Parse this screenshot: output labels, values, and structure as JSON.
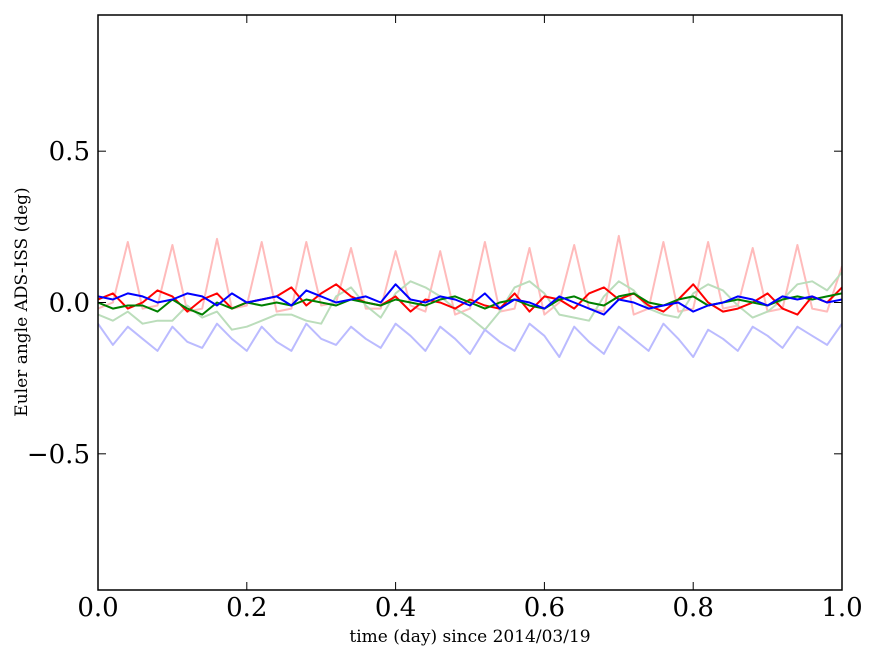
{
  "chart_data": {
    "type": "line",
    "title": "",
    "xlabel": "time (day) since 2014/03/19",
    "ylabel": "Euler angle ADS-ISS (deg)",
    "xlim": [
      0.0,
      1.0
    ],
    "ylim": [
      -0.95,
      0.95
    ],
    "xticks": [
      0.0,
      0.2,
      0.4,
      0.6,
      0.8,
      1.0
    ],
    "xtick_labels": [
      "0.0",
      "0.2",
      "0.4",
      "0.6",
      "0.8",
      "1.0"
    ],
    "yticks": [
      0.5,
      0.0,
      -0.5
    ],
    "ytick_labels": [
      "0.5",
      "0.0",
      "−0.5"
    ],
    "grid": false,
    "legend": "none",
    "x": [
      0.0,
      0.02,
      0.04,
      0.06,
      0.08,
      0.1,
      0.12,
      0.14,
      0.16,
      0.18,
      0.2,
      0.22,
      0.24,
      0.26,
      0.28,
      0.3,
      0.32,
      0.34,
      0.36,
      0.38,
      0.4,
      0.42,
      0.44,
      0.46,
      0.48,
      0.5,
      0.52,
      0.54,
      0.56,
      0.58,
      0.6,
      0.62,
      0.64,
      0.66,
      0.68,
      0.7,
      0.72,
      0.74,
      0.76,
      0.78,
      0.8,
      0.82,
      0.84,
      0.86,
      0.88,
      0.9,
      0.92,
      0.94,
      0.96,
      0.98,
      1.0
    ],
    "series": [
      {
        "color": "#ffbbbb",
        "values": [
          -0.02,
          0.0,
          0.2,
          -0.02,
          -0.01,
          0.19,
          -0.03,
          -0.02,
          0.21,
          -0.02,
          -0.01,
          0.2,
          -0.03,
          -0.02,
          0.2,
          -0.01,
          0.0,
          0.18,
          -0.02,
          -0.02,
          0.17,
          -0.01,
          -0.03,
          0.17,
          -0.04,
          -0.02,
          0.2,
          -0.03,
          -0.02,
          0.18,
          -0.04,
          0.0,
          0.19,
          -0.02,
          -0.03,
          0.22,
          -0.04,
          -0.02,
          0.2,
          -0.03,
          -0.02,
          0.2,
          -0.02,
          -0.01,
          0.18,
          -0.03,
          -0.02,
          0.19,
          -0.02,
          -0.03,
          0.12
        ]
      },
      {
        "color": "#bbddbb",
        "values": [
          -0.04,
          -0.06,
          -0.03,
          -0.07,
          -0.06,
          -0.06,
          -0.01,
          -0.05,
          -0.03,
          -0.09,
          -0.08,
          -0.06,
          -0.04,
          -0.04,
          -0.06,
          -0.07,
          0.02,
          0.05,
          -0.01,
          -0.05,
          0.03,
          0.07,
          0.05,
          0.02,
          -0.02,
          -0.05,
          -0.09,
          -0.03,
          0.05,
          0.07,
          0.03,
          -0.04,
          -0.05,
          -0.06,
          0.02,
          0.07,
          0.04,
          -0.02,
          -0.04,
          -0.05,
          0.03,
          0.06,
          0.04,
          -0.01,
          -0.05,
          -0.03,
          0.01,
          0.06,
          0.07,
          0.04,
          0.1
        ]
      },
      {
        "color": "#bbbbff",
        "values": [
          -0.07,
          -0.14,
          -0.08,
          -0.12,
          -0.16,
          -0.08,
          -0.13,
          -0.15,
          -0.07,
          -0.12,
          -0.16,
          -0.08,
          -0.13,
          -0.16,
          -0.07,
          -0.12,
          -0.14,
          -0.08,
          -0.12,
          -0.15,
          -0.07,
          -0.11,
          -0.16,
          -0.08,
          -0.12,
          -0.17,
          -0.09,
          -0.13,
          -0.16,
          -0.07,
          -0.11,
          -0.18,
          -0.08,
          -0.13,
          -0.17,
          -0.08,
          -0.12,
          -0.16,
          -0.07,
          -0.12,
          -0.18,
          -0.09,
          -0.12,
          -0.16,
          -0.08,
          -0.11,
          -0.15,
          -0.08,
          -0.11,
          -0.14,
          -0.07
        ]
      },
      {
        "color": "#ff0000",
        "values": [
          0.01,
          0.03,
          -0.02,
          0.0,
          0.04,
          0.02,
          -0.03,
          0.01,
          0.03,
          -0.02,
          0.0,
          0.01,
          0.02,
          0.05,
          -0.01,
          0.03,
          0.06,
          0.02,
          0.0,
          -0.01,
          0.02,
          -0.03,
          0.01,
          0.0,
          -0.02,
          0.01,
          -0.01,
          -0.02,
          0.03,
          -0.03,
          0.02,
          0.01,
          -0.02,
          0.03,
          0.05,
          0.01,
          0.03,
          -0.01,
          -0.03,
          0.01,
          0.06,
          0.0,
          -0.03,
          -0.02,
          0.0,
          0.03,
          -0.02,
          -0.04,
          0.02,
          0.0,
          0.05
        ]
      },
      {
        "color": "#008000",
        "values": [
          0.0,
          -0.02,
          -0.01,
          -0.01,
          -0.03,
          0.01,
          -0.02,
          -0.04,
          0.0,
          -0.02,
          0.0,
          -0.01,
          0.0,
          -0.01,
          0.01,
          0.0,
          -0.01,
          0.01,
          0.0,
          -0.01,
          0.01,
          0.0,
          -0.01,
          0.01,
          0.02,
          0.0,
          -0.02,
          0.0,
          0.01,
          -0.01,
          -0.02,
          0.01,
          0.02,
          0.0,
          -0.01,
          0.02,
          0.03,
          0.0,
          -0.01,
          0.01,
          0.02,
          -0.01,
          0.0,
          0.01,
          0.0,
          -0.01,
          0.01,
          0.02,
          0.01,
          0.02,
          0.03
        ]
      },
      {
        "color": "#0000ff",
        "values": [
          0.02,
          0.01,
          0.03,
          0.02,
          0.0,
          0.01,
          0.03,
          0.02,
          -0.01,
          0.03,
          0.0,
          0.01,
          0.02,
          -0.01,
          0.04,
          0.02,
          0.0,
          0.01,
          0.02,
          0.0,
          0.06,
          0.01,
          0.0,
          0.02,
          0.01,
          -0.01,
          0.03,
          -0.02,
          0.01,
          0.0,
          -0.02,
          0.02,
          0.0,
          -0.02,
          -0.04,
          0.01,
          0.0,
          -0.02,
          -0.01,
          0.0,
          -0.03,
          -0.01,
          0.0,
          0.02,
          0.01,
          -0.01,
          0.02,
          0.01,
          0.02,
          0.0,
          0.01
        ]
      }
    ]
  }
}
